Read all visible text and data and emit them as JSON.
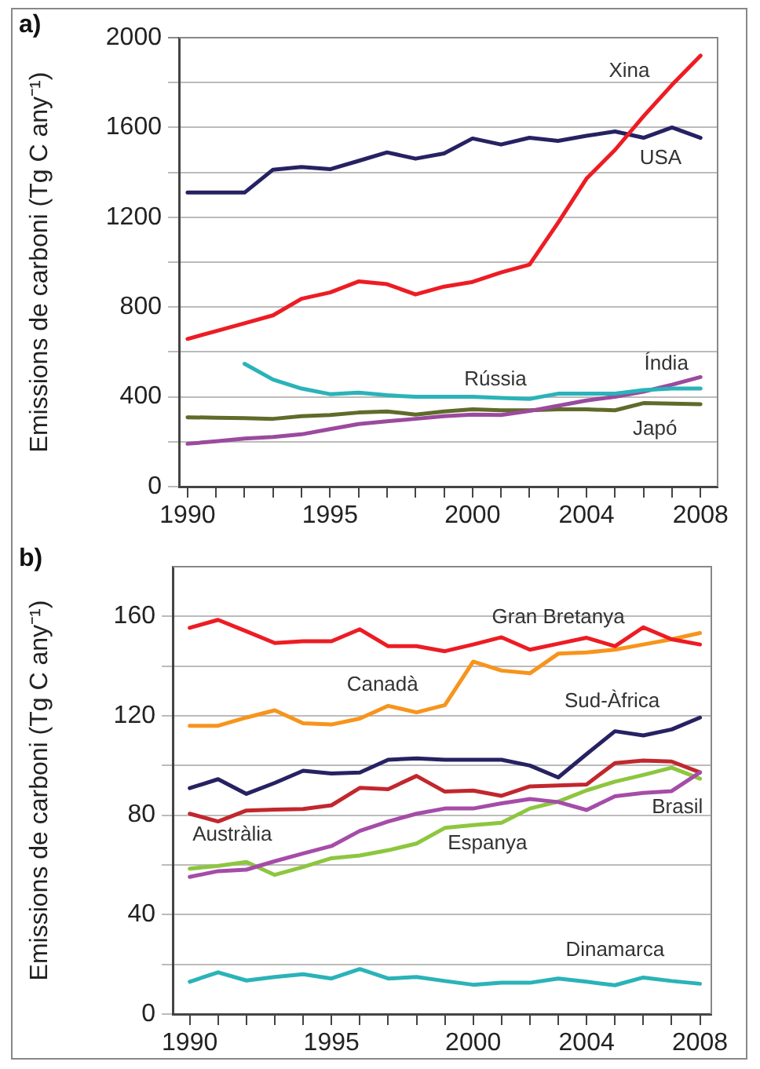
{
  "chart_data": [
    {
      "type": "line",
      "title": "a)",
      "ylabel": "Emissions de carboni (Tg C any⁻¹)",
      "x": [
        1990,
        1991,
        1992,
        1993,
        1994,
        1995,
        1996,
        1997,
        1998,
        1999,
        2000,
        2001,
        2002,
        2003,
        2004,
        2005,
        2006,
        2007,
        2008
      ],
      "xlim": [
        1989.7,
        2008.6
      ],
      "xticks": [
        1990,
        {
          "value": 1991,
          "label": null
        },
        {
          "value": 1992,
          "label": null
        },
        {
          "value": 1993,
          "label": null
        },
        {
          "value": 1994,
          "label": null
        },
        1995,
        {
          "value": 1996,
          "label": null
        },
        {
          "value": 1997,
          "label": null
        },
        {
          "value": 1998,
          "label": null
        },
        {
          "value": 1999,
          "label": null
        },
        2000,
        {
          "value": 2001,
          "label": null
        },
        {
          "value": 2002,
          "label": null
        },
        {
          "value": 2003,
          "label": null
        },
        2004,
        {
          "value": 2005,
          "label": null
        },
        {
          "value": 2006,
          "label": null
        },
        {
          "value": 2007,
          "label": null
        },
        2008
      ],
      "ylim": [
        0,
        2000
      ],
      "yticks": [
        0,
        {
          "value": 200,
          "label": null
        },
        400,
        {
          "value": 600,
          "label": null
        },
        800,
        {
          "value": 1000,
          "label": null
        },
        1200,
        {
          "value": 1400,
          "label": null
        },
        1600,
        {
          "value": 1800,
          "label": null
        },
        2000
      ],
      "grid": "y",
      "marker": "none",
      "line_style": "solid",
      "series": [
        {
          "name": "Xina",
          "color": "#ed1c24",
          "values": [
            658,
            693,
            728,
            763,
            837,
            865,
            914,
            902,
            856,
            891,
            912,
            954,
            989,
            1175,
            1372,
            1500,
            1650,
            1790,
            1920
          ]
        },
        {
          "name": "USA",
          "color": "#262262",
          "values": [
            1310,
            1310,
            1310,
            1412,
            1424,
            1414,
            1451,
            1489,
            1461,
            1484,
            1551,
            1524,
            1554,
            1540,
            1563,
            1582,
            1554,
            1600,
            1554
          ]
        },
        {
          "name": "Rússia",
          "color": "#2ab3b8",
          "values": [
            null,
            null,
            547,
            477,
            437,
            412,
            419,
            407,
            400,
            400,
            400,
            395,
            391,
            414,
            414,
            414,
            430,
            437,
            437
          ]
        },
        {
          "name": "Índia",
          "color": "#9b4a9e",
          "values": [
            191,
            202,
            214,
            221,
            233,
            256,
            279,
            291,
            302,
            314,
            321,
            319,
            337,
            360,
            384,
            400,
            423,
            454,
            488
          ]
        },
        {
          "name": "Japó",
          "color": "#5f6b2a",
          "values": [
            309,
            307,
            305,
            302,
            314,
            319,
            330,
            335,
            321,
            335,
            344,
            340,
            340,
            344,
            344,
            340,
            372,
            370,
            367
          ]
        }
      ]
    },
    {
      "type": "line",
      "title": "b)",
      "ylabel": "Emissions de carboni (Tg C any⁻¹)",
      "x": [
        1990,
        1991,
        1992,
        1993,
        1994,
        1995,
        1996,
        1997,
        1998,
        1999,
        2000,
        2001,
        2002,
        2003,
        2004,
        2005,
        2006,
        2007,
        2008
      ],
      "xlim": [
        1989.4,
        2008.4
      ],
      "xticks": [
        1990,
        {
          "value": 1991,
          "label": null
        },
        {
          "value": 1992,
          "label": null
        },
        {
          "value": 1993,
          "label": null
        },
        {
          "value": 1994,
          "label": null
        },
        1995,
        {
          "value": 1996,
          "label": null
        },
        {
          "value": 1997,
          "label": null
        },
        {
          "value": 1998,
          "label": null
        },
        {
          "value": 1999,
          "label": null
        },
        2000,
        {
          "value": 2001,
          "label": null
        },
        {
          "value": 2002,
          "label": null
        },
        {
          "value": 2003,
          "label": null
        },
        2004,
        {
          "value": 2005,
          "label": null
        },
        {
          "value": 2006,
          "label": null
        },
        {
          "value": 2007,
          "label": null
        },
        2008
      ],
      "ylim": [
        0,
        180
      ],
      "yticks": [
        0,
        {
          "value": 20,
          "label": null
        },
        40,
        {
          "value": 60,
          "label": null
        },
        80,
        {
          "value": 100,
          "label": null
        },
        120,
        {
          "value": 140,
          "label": null
        },
        160
      ],
      "grid": "y",
      "marker": "none",
      "line_style": "solid",
      "series": [
        {
          "name": "Gran Bretanya",
          "color": "#ed1c24",
          "values": [
            155.4,
            158.6,
            154,
            149.3,
            150,
            150,
            154.8,
            148,
            148,
            146,
            148.7,
            151.6,
            146.6,
            149,
            151.4,
            148,
            155.6,
            150.8,
            148.7
          ]
        },
        {
          "name": "Canadà",
          "color": "#f7941d",
          "values": [
            116,
            116,
            119.3,
            122.2,
            117,
            116.5,
            118.9,
            124,
            121.4,
            124.3,
            141.8,
            138.2,
            137.1,
            145,
            145.5,
            146.6,
            148.7,
            150.8,
            153.3
          ]
        },
        {
          "name": "Sud-Àfrica",
          "color": "#262262",
          "values": [
            90.9,
            94.5,
            88.6,
            93,
            97.9,
            96.8,
            97.2,
            102.3,
            102.9,
            102.3,
            102.3,
            102.3,
            100,
            95.2,
            104.6,
            113.8,
            112.1,
            114.5,
            119.3
          ]
        },
        {
          "name": "Brasil",
          "color": "#a54ca8",
          "values": [
            55.2,
            57.5,
            58.1,
            61.5,
            64.6,
            67.6,
            73.7,
            77.5,
            80.6,
            82.7,
            82.7,
            84.8,
            86.5,
            85.3,
            82.1,
            87.6,
            89,
            89.7,
            97.2
          ]
        },
        {
          "name": "Austràlia",
          "color": "#c1272d",
          "values": [
            80.6,
            77.5,
            81.9,
            82.3,
            82.5,
            84,
            91,
            90.5,
            95.8,
            89.5,
            89.9,
            87.8,
            91.6,
            92,
            92.4,
            101,
            102,
            101.6,
            97.2
          ]
        },
        {
          "name": "Espanya",
          "color": "#8dc63f",
          "values": [
            58.5,
            59.6,
            61.2,
            56,
            59.2,
            62.7,
            63.8,
            65.9,
            68.6,
            74.9,
            76,
            77,
            82.7,
            85.5,
            90,
            93.5,
            96.2,
            99.1,
            94.7
          ]
        },
        {
          "name": "Dinamarca",
          "color": "#2ab3b8",
          "values": [
            13,
            16.8,
            13.5,
            14.9,
            16,
            14.3,
            18.1,
            14.3,
            14.9,
            13.3,
            11.8,
            12.6,
            12.6,
            14.3,
            13,
            11.6,
            14.7,
            13.3,
            12.2
          ]
        }
      ]
    }
  ]
}
